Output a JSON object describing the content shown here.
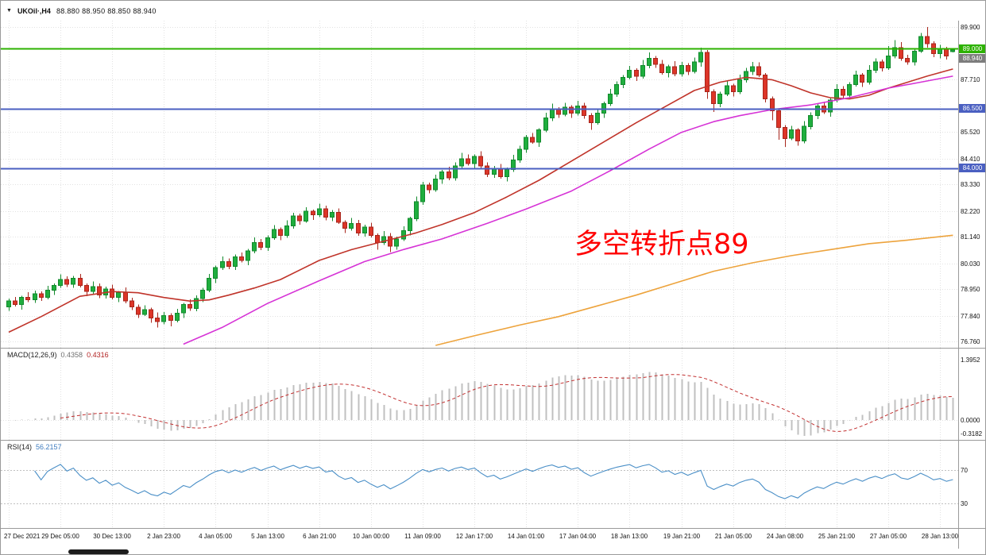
{
  "titlebar": {
    "marker": "▼",
    "symbol": "UKOil·,H4",
    "ohlc": "88.880 88.950 88.850 88.940"
  },
  "annotation": {
    "text": "多空转折点89",
    "color": "#ff0000"
  },
  "macd_panel": {
    "name": "MACD(12,26,9)",
    "value1": "0.4358",
    "value2": "0.4316"
  },
  "rsi_panel": {
    "name": "RSI(14)",
    "value": "56.2157"
  },
  "colors": {
    "grid": "#e2e2e2",
    "separator": "#9a9a9a",
    "up": {
      "fill": "#1fae3e",
      "stroke": "#128a2c"
    },
    "down": {
      "fill": "#dd3528",
      "stroke": "#a8261c"
    },
    "level_green": "#2db200",
    "level_blue": "#4a5fc1"
  },
  "chart_data": {
    "type": "candlestick",
    "symbol": "UKOil·,H4",
    "timeframe": "H4",
    "current_bar": {
      "o": 88.88,
      "h": 88.95,
      "l": 88.85,
      "c": 88.94
    },
    "x0": 10,
    "dx": 8.14,
    "bars_per_gridline": 8,
    "main_ylim": [
      76.5,
      90.17
    ],
    "x_labels": [
      "27 Dec 2021",
      "29 Dec 05:00",
      "30 Dec 13:00",
      "2 Jan 23:00",
      "4 Jan 05:00",
      "5 Jan 13:00",
      "6 Jan 21:00",
      "10 Jan 00:00",
      "11 Jan 09:00",
      "12 Jan 17:00",
      "14 Jan 01:00",
      "17 Jan 04:00",
      "18 Jan 13:00",
      "19 Jan 21:00",
      "21 Jan 05:00",
      "24 Jan 08:00",
      "25 Jan 21:00",
      "27 Jan 05:00",
      "28 Jan 13:00"
    ],
    "price_ticks": [
      {
        "v": 89.9,
        "t": "89.900"
      },
      {
        "v": 87.71,
        "t": "87.710"
      },
      {
        "v": 85.52,
        "t": "85.520"
      },
      {
        "v": 84.41,
        "t": "84.410"
      },
      {
        "v": 83.33,
        "t": "83.330"
      },
      {
        "v": 82.22,
        "t": "82.220"
      },
      {
        "v": 81.14,
        "t": "81.140"
      },
      {
        "v": 80.03,
        "t": "80.030"
      },
      {
        "v": 78.95,
        "t": "78.950"
      },
      {
        "v": 77.84,
        "t": "77.840"
      },
      {
        "v": 76.76,
        "t": "76.760"
      }
    ],
    "price_tags": [
      {
        "v": 89.0,
        "t": "89.000",
        "bg": "#2db200"
      },
      {
        "v": 88.94,
        "t": "88.940",
        "bg": "#7d7d7d"
      },
      {
        "v": 86.5,
        "t": "86.500",
        "bg": "#4a5fc1"
      },
      {
        "v": 84.0,
        "t": "84.000",
        "bg": "#4a5fc1"
      }
    ],
    "hlines": [
      {
        "v": 89.0,
        "t": "89.000",
        "color": "#2db200",
        "w": 2
      },
      {
        "v": 86.5,
        "t": "86.500",
        "color": "#4a5fc1",
        "w": 2
      },
      {
        "v": 84.0,
        "t": "84.000",
        "color": "#4a5fc1",
        "w": 2
      }
    ],
    "candles": [
      [
        78.2,
        78.55,
        78.05,
        78.45
      ],
      [
        78.45,
        78.63,
        78.22,
        78.3
      ],
      [
        78.3,
        78.68,
        78.1,
        78.6
      ],
      [
        78.6,
        78.82,
        78.4,
        78.5
      ],
      [
        78.5,
        78.89,
        78.38,
        78.75
      ],
      [
        78.75,
        78.85,
        78.45,
        78.6
      ],
      [
        78.6,
        79.08,
        78.52,
        78.9
      ],
      [
        78.9,
        79.18,
        78.7,
        79.1
      ],
      [
        79.1,
        79.57,
        79.0,
        79.35
      ],
      [
        79.35,
        79.49,
        79.03,
        79.15
      ],
      [
        79.15,
        79.5,
        79.0,
        79.4
      ],
      [
        79.4,
        79.58,
        79.02,
        79.1
      ],
      [
        79.1,
        79.18,
        78.65,
        78.85
      ],
      [
        78.85,
        79.27,
        78.75,
        79.05
      ],
      [
        79.05,
        79.19,
        78.58,
        78.7
      ],
      [
        78.7,
        79.05,
        78.55,
        78.95
      ],
      [
        78.95,
        79.13,
        78.52,
        78.6
      ],
      [
        78.6,
        78.88,
        78.4,
        78.8
      ],
      [
        78.8,
        79.02,
        78.35,
        78.45
      ],
      [
        78.45,
        78.59,
        78.08,
        78.2
      ],
      [
        78.2,
        78.3,
        77.75,
        77.9
      ],
      [
        77.9,
        78.28,
        77.82,
        78.1
      ],
      [
        78.1,
        78.18,
        77.55,
        77.75
      ],
      [
        77.75,
        77.97,
        77.35,
        77.6
      ],
      [
        77.6,
        77.99,
        77.48,
        77.85
      ],
      [
        77.85,
        77.95,
        77.4,
        77.65
      ],
      [
        77.65,
        78.13,
        77.57,
        77.95
      ],
      [
        77.95,
        78.38,
        77.75,
        78.3
      ],
      [
        78.3,
        78.52,
        78.05,
        78.15
      ],
      [
        78.15,
        78.69,
        78.03,
        78.55
      ],
      [
        78.55,
        79.0,
        78.4,
        78.9
      ],
      [
        78.9,
        79.58,
        78.82,
        79.4
      ],
      [
        79.4,
        79.93,
        79.2,
        79.85
      ],
      [
        79.85,
        80.32,
        79.75,
        80.1
      ],
      [
        80.1,
        80.24,
        79.78,
        79.9
      ],
      [
        79.9,
        80.4,
        79.75,
        80.3
      ],
      [
        80.3,
        80.48,
        80.07,
        80.15
      ],
      [
        80.15,
        80.63,
        79.95,
        80.55
      ],
      [
        80.55,
        81.12,
        80.45,
        80.9
      ],
      [
        80.9,
        81.04,
        80.58,
        80.7
      ],
      [
        80.7,
        81.2,
        80.55,
        81.1
      ],
      [
        81.1,
        81.63,
        81.02,
        81.45
      ],
      [
        81.45,
        81.53,
        81.0,
        81.2
      ],
      [
        81.2,
        81.82,
        81.1,
        81.6
      ],
      [
        81.6,
        82.14,
        81.48,
        82.0
      ],
      [
        82.0,
        82.1,
        81.65,
        81.8
      ],
      [
        81.8,
        82.38,
        81.72,
        82.2
      ],
      [
        82.2,
        82.28,
        81.85,
        82.05
      ],
      [
        82.05,
        82.52,
        81.95,
        82.3
      ],
      [
        82.3,
        82.44,
        81.83,
        81.95
      ],
      [
        81.95,
        82.25,
        81.8,
        82.15
      ],
      [
        82.15,
        82.33,
        81.67,
        81.75
      ],
      [
        81.75,
        81.83,
        81.3,
        81.5
      ],
      [
        81.5,
        81.92,
        81.4,
        81.7
      ],
      [
        81.7,
        81.84,
        81.18,
        81.3
      ],
      [
        81.3,
        81.65,
        81.15,
        81.55
      ],
      [
        81.55,
        81.73,
        81.12,
        81.2
      ],
      [
        81.2,
        81.28,
        80.6,
        80.9
      ],
      [
        80.9,
        81.37,
        80.8,
        81.15
      ],
      [
        81.15,
        81.29,
        80.5,
        80.75
      ],
      [
        80.75,
        81.15,
        80.6,
        81.05
      ],
      [
        81.05,
        81.58,
        80.97,
        81.4
      ],
      [
        81.4,
        81.98,
        81.2,
        81.9
      ],
      [
        81.9,
        82.82,
        81.8,
        82.6
      ],
      [
        82.6,
        83.44,
        82.48,
        83.3
      ],
      [
        83.3,
        83.4,
        82.95,
        83.1
      ],
      [
        83.1,
        83.73,
        83.02,
        83.55
      ],
      [
        83.55,
        83.93,
        83.35,
        83.85
      ],
      [
        83.85,
        84.07,
        83.5,
        83.6
      ],
      [
        83.6,
        84.24,
        83.48,
        84.1
      ],
      [
        84.1,
        84.65,
        83.95,
        84.4
      ],
      [
        84.4,
        84.58,
        84.12,
        84.2
      ],
      [
        84.2,
        84.58,
        84.0,
        84.5
      ],
      [
        84.5,
        84.72,
        84.0,
        84.1
      ],
      [
        84.1,
        84.24,
        83.63,
        83.75
      ],
      [
        83.75,
        84.1,
        83.6,
        84.0
      ],
      [
        84.0,
        84.18,
        83.57,
        83.65
      ],
      [
        83.65,
        84.03,
        83.45,
        83.95
      ],
      [
        83.95,
        84.57,
        83.85,
        84.35
      ],
      [
        84.35,
        84.94,
        84.23,
        84.8
      ],
      [
        84.8,
        85.4,
        84.65,
        85.3
      ],
      [
        85.3,
        85.48,
        85.02,
        85.1
      ],
      [
        85.1,
        85.68,
        84.9,
        85.6
      ],
      [
        85.6,
        86.32,
        85.5,
        86.1
      ],
      [
        86.1,
        86.7,
        85.98,
        86.45
      ],
      [
        86.45,
        86.55,
        86.1,
        86.25
      ],
      [
        86.25,
        86.73,
        86.17,
        86.55
      ],
      [
        86.55,
        86.63,
        86.1,
        86.3
      ],
      [
        86.3,
        86.82,
        86.2,
        86.6
      ],
      [
        86.6,
        86.74,
        86.08,
        86.2
      ],
      [
        86.2,
        86.3,
        85.6,
        85.9
      ],
      [
        85.9,
        86.48,
        85.82,
        86.3
      ],
      [
        86.3,
        86.78,
        86.1,
        86.7
      ],
      [
        86.7,
        87.32,
        86.6,
        87.1
      ],
      [
        87.1,
        87.64,
        86.98,
        87.5
      ],
      [
        87.5,
        87.9,
        87.35,
        87.8
      ],
      [
        87.8,
        88.28,
        87.72,
        88.1
      ],
      [
        88.1,
        88.18,
        87.65,
        87.85
      ],
      [
        87.85,
        88.52,
        87.75,
        88.3
      ],
      [
        88.3,
        88.85,
        88.18,
        88.6
      ],
      [
        88.6,
        88.7,
        88.2,
        88.35
      ],
      [
        88.35,
        88.53,
        87.92,
        88.0
      ],
      [
        88.0,
        88.33,
        87.8,
        88.25
      ],
      [
        88.25,
        88.47,
        87.85,
        87.95
      ],
      [
        87.95,
        88.44,
        87.83,
        88.3
      ],
      [
        88.3,
        88.4,
        87.9,
        88.05
      ],
      [
        88.05,
        88.63,
        87.97,
        88.45
      ],
      [
        88.45,
        89.05,
        88.25,
        88.85
      ],
      [
        88.85,
        88.95,
        86.9,
        87.2
      ],
      [
        87.2,
        87.3,
        86.35,
        86.7
      ],
      [
        86.7,
        87.2,
        86.55,
        87.1
      ],
      [
        87.1,
        87.63,
        87.02,
        87.45
      ],
      [
        87.45,
        87.53,
        87.0,
        87.2
      ],
      [
        87.2,
        87.92,
        87.1,
        87.7
      ],
      [
        87.7,
        88.19,
        87.58,
        88.05
      ],
      [
        88.05,
        88.45,
        87.9,
        88.25
      ],
      [
        88.25,
        88.43,
        87.82,
        87.9
      ],
      [
        87.9,
        87.98,
        86.75,
        86.9
      ],
      [
        86.9,
        87.0,
        86.0,
        86.4
      ],
      [
        86.4,
        86.5,
        85.2,
        85.7
      ],
      [
        85.7,
        85.8,
        84.9,
        85.25
      ],
      [
        85.25,
        85.78,
        85.17,
        85.6
      ],
      [
        85.6,
        85.68,
        84.95,
        85.15
      ],
      [
        85.15,
        85.97,
        85.05,
        85.75
      ],
      [
        85.75,
        86.34,
        85.63,
        86.2
      ],
      [
        86.2,
        86.7,
        86.05,
        86.6
      ],
      [
        86.6,
        86.78,
        86.27,
        86.35
      ],
      [
        86.35,
        86.93,
        86.15,
        86.85
      ],
      [
        86.85,
        87.52,
        86.75,
        87.3
      ],
      [
        87.3,
        87.44,
        86.93,
        87.05
      ],
      [
        87.05,
        87.6,
        86.9,
        87.5
      ],
      [
        87.5,
        88.08,
        87.42,
        87.9
      ],
      [
        87.9,
        87.98,
        87.4,
        87.6
      ],
      [
        87.6,
        88.32,
        87.5,
        88.1
      ],
      [
        88.1,
        88.59,
        87.98,
        88.45
      ],
      [
        88.45,
        88.55,
        88.05,
        88.2
      ],
      [
        88.2,
        89.1,
        88.12,
        88.7
      ],
      [
        88.7,
        89.35,
        88.6,
        89.05
      ],
      [
        89.05,
        89.27,
        88.5,
        88.6
      ],
      [
        88.6,
        88.74,
        88.33,
        88.45
      ],
      [
        88.45,
        89.0,
        88.3,
        88.9
      ],
      [
        88.9,
        89.65,
        88.82,
        89.5
      ],
      [
        89.5,
        89.9,
        89.05,
        89.2
      ],
      [
        89.2,
        89.3,
        88.65,
        88.8
      ],
      [
        88.8,
        89.15,
        88.6,
        89.0
      ],
      [
        89.0,
        89.08,
        88.55,
        88.7
      ],
      [
        88.88,
        88.95,
        88.85,
        88.94
      ]
    ],
    "moving_averages": [
      {
        "name": "ma-fast-red",
        "color": "#c0342a",
        "width": 1.6,
        "points": [
          [
            0,
            77.15
          ],
          [
            5,
            77.8
          ],
          [
            11,
            78.65
          ],
          [
            16,
            78.85
          ],
          [
            20,
            78.8
          ],
          [
            24,
            78.6
          ],
          [
            28,
            78.45
          ],
          [
            31,
            78.5
          ],
          [
            34,
            78.7
          ],
          [
            38,
            79.0
          ],
          [
            42,
            79.35
          ],
          [
            48,
            80.15
          ],
          [
            53,
            80.6
          ],
          [
            58,
            80.95
          ],
          [
            63,
            81.3
          ],
          [
            67,
            81.65
          ],
          [
            72,
            82.15
          ],
          [
            77,
            82.8
          ],
          [
            82,
            83.5
          ],
          [
            87,
            84.3
          ],
          [
            92,
            85.1
          ],
          [
            97,
            85.9
          ],
          [
            101,
            86.5
          ],
          [
            106,
            87.25
          ],
          [
            110,
            87.6
          ],
          [
            114,
            87.8
          ],
          [
            118,
            87.7
          ],
          [
            121,
            87.45
          ],
          [
            124,
            87.15
          ],
          [
            127,
            86.95
          ],
          [
            130,
            86.9
          ],
          [
            133,
            87.05
          ],
          [
            136,
            87.35
          ],
          [
            139,
            87.6
          ],
          [
            142,
            87.85
          ],
          [
            146,
            88.15
          ]
        ]
      },
      {
        "name": "ma-mid-magenta",
        "color": "#d633d6",
        "width": 1.6,
        "points": [
          [
            27,
            76.65
          ],
          [
            33,
            77.35
          ],
          [
            40,
            78.35
          ],
          [
            48,
            79.3
          ],
          [
            55,
            80.1
          ],
          [
            61,
            80.6
          ],
          [
            67,
            81.05
          ],
          [
            74,
            81.7
          ],
          [
            80,
            82.3
          ],
          [
            87,
            83.05
          ],
          [
            93,
            83.9
          ],
          [
            99,
            84.8
          ],
          [
            104,
            85.5
          ],
          [
            109,
            85.95
          ],
          [
            113,
            86.2
          ],
          [
            118,
            86.45
          ],
          [
            124,
            86.65
          ],
          [
            130,
            86.95
          ],
          [
            136,
            87.35
          ],
          [
            141,
            87.6
          ],
          [
            146,
            87.85
          ]
        ]
      },
      {
        "name": "ma-slow-orange",
        "color": "#eda33c",
        "width": 1.6,
        "points": [
          [
            66,
            76.6
          ],
          [
            72,
            77.0
          ],
          [
            79,
            77.45
          ],
          [
            85,
            77.8
          ],
          [
            91,
            78.25
          ],
          [
            97,
            78.7
          ],
          [
            103,
            79.2
          ],
          [
            109,
            79.7
          ],
          [
            115,
            80.05
          ],
          [
            121,
            80.35
          ],
          [
            127,
            80.6
          ],
          [
            133,
            80.85
          ],
          [
            139,
            81.0
          ],
          [
            146,
            81.2
          ]
        ]
      }
    ],
    "macd": {
      "params": "12,26,9",
      "current_values": [
        0.4358,
        0.4316
      ],
      "ylim": [
        -0.466,
        1.657
      ],
      "ticks": [
        {
          "v": 1.3952,
          "t": "1.3952"
        },
        {
          "v": 0,
          "t": "0.0000"
        },
        {
          "v": -0.3182,
          "t": "-0.3182"
        }
      ],
      "hist_color": "#c0c0c0",
      "signal_color": "#c23030"
    },
    "rsi": {
      "period": 14,
      "current_value": 56.2157,
      "ylim": [
        0,
        105
      ],
      "levels": [
        70,
        30
      ],
      "ticks": [
        {
          "v": 70,
          "t": "70"
        },
        {
          "v": 30,
          "t": "30"
        }
      ],
      "color": "#4a8fc7"
    }
  }
}
